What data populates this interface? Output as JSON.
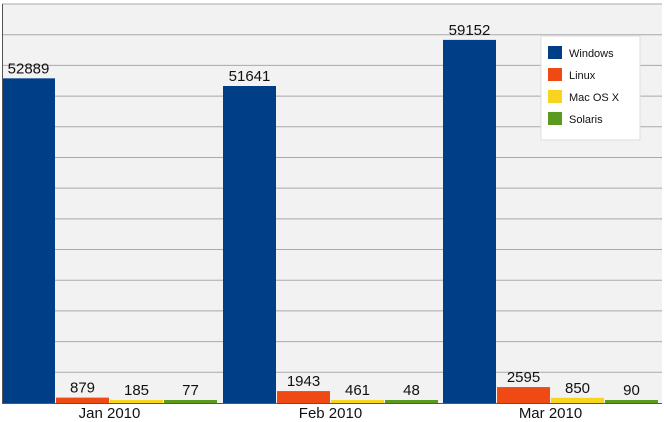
{
  "chart_data": {
    "type": "bar",
    "categories": [
      "Jan 2010",
      "Feb 2010",
      "Mar 2010"
    ],
    "series": [
      {
        "name": "Windows",
        "values": [
          52889,
          51641,
          59152
        ],
        "color": "#003f87"
      },
      {
        "name": "Linux",
        "values": [
          879,
          1943,
          2595
        ],
        "color": "#f04a14"
      },
      {
        "name": "Mac OS X",
        "values": [
          185,
          461,
          850
        ],
        "color": "#f7d51f"
      },
      {
        "name": "Solaris",
        "values": [
          77,
          48,
          90
        ],
        "color": "#5a9a1e"
      }
    ],
    "ylim": [
      0,
      65000
    ],
    "grid": true,
    "legend_position": "top-right",
    "background_color": "#f2f2f2",
    "grid_color": "#a9a9a9"
  }
}
